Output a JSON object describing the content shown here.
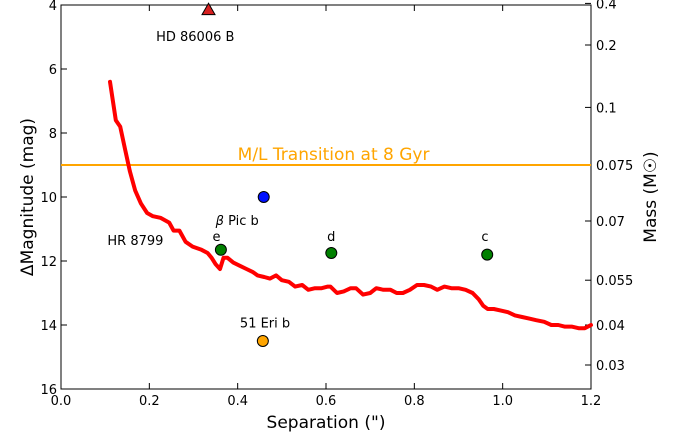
{
  "chart_data": {
    "type": "line",
    "xlabel": "Separation (\")",
    "ylabel": "ΔMagnitude (mag)",
    "ylabel_right": "Mass (M☉)",
    "xlim": [
      0.0,
      1.2
    ],
    "ylim": [
      16,
      4
    ],
    "x_ticks": [
      0.0,
      0.2,
      0.4,
      0.6,
      0.8,
      1.0,
      1.2
    ],
    "x_tick_labels": [
      "0.0",
      "0.2",
      "0.4",
      "0.6",
      "0.8",
      "1.0",
      "1.2"
    ],
    "y_ticks": [
      4,
      6,
      8,
      10,
      12,
      14,
      16
    ],
    "y_tick_labels": [
      "4",
      "6",
      "8",
      "10",
      "12",
      "14",
      "16"
    ],
    "right_axis_ticks": [
      {
        "label": "0.4",
        "dmag": 3.95
      },
      {
        "label": "0.2",
        "dmag": 5.25
      },
      {
        "label": "0.1",
        "dmag": 7.2
      },
      {
        "label": "0.075",
        "dmag": 9.0
      },
      {
        "label": "0.07",
        "dmag": 10.75
      },
      {
        "label": "0.055",
        "dmag": 12.6
      },
      {
        "label": "0.04",
        "dmag": 14.0
      },
      {
        "label": "0.03",
        "dmag": 15.25
      }
    ],
    "grid": false,
    "series": [
      {
        "color": "#ff0000",
        "x": [
          0.111,
          0.124,
          0.134,
          0.145,
          0.156,
          0.168,
          0.181,
          0.195,
          0.208,
          0.225,
          0.245,
          0.255,
          0.268,
          0.282,
          0.298,
          0.318,
          0.332,
          0.341,
          0.35,
          0.36,
          0.368,
          0.377,
          0.39,
          0.405,
          0.42,
          0.435,
          0.445,
          0.46,
          0.473,
          0.487,
          0.5,
          0.516,
          0.53,
          0.546,
          0.56,
          0.575,
          0.59,
          0.604,
          0.61,
          0.625,
          0.64,
          0.656,
          0.668,
          0.684,
          0.7,
          0.714,
          0.73,
          0.746,
          0.76,
          0.774,
          0.79,
          0.806,
          0.822,
          0.838,
          0.852,
          0.868,
          0.884,
          0.9,
          0.916,
          0.932,
          0.946,
          0.956,
          0.966,
          0.98,
          0.996,
          1.012,
          1.028,
          1.044,
          1.06,
          1.076,
          1.094,
          1.11,
          1.126,
          1.14,
          1.156,
          1.172,
          1.186,
          1.2
        ],
        "y": [
          6.4,
          7.6,
          7.8,
          8.5,
          9.2,
          9.8,
          10.2,
          10.5,
          10.6,
          10.65,
          10.8,
          11.05,
          11.05,
          11.4,
          11.55,
          11.65,
          11.75,
          11.9,
          12.1,
          12.25,
          11.9,
          11.9,
          12.05,
          12.15,
          12.25,
          12.35,
          12.45,
          12.5,
          12.55,
          12.45,
          12.6,
          12.65,
          12.8,
          12.75,
          12.9,
          12.85,
          12.85,
          12.8,
          12.8,
          13.0,
          12.95,
          12.85,
          12.85,
          13.05,
          13.0,
          12.85,
          12.9,
          12.9,
          13.0,
          13.0,
          12.9,
          12.75,
          12.75,
          12.8,
          12.9,
          12.8,
          12.85,
          12.85,
          12.9,
          13.0,
          13.2,
          13.4,
          13.5,
          13.5,
          13.55,
          13.6,
          13.7,
          13.75,
          13.8,
          13.85,
          13.9,
          14.0,
          14.0,
          14.05,
          14.05,
          14.1,
          14.1,
          14.0
        ]
      }
    ],
    "transition_line": {
      "label": "M/L Transition at 8 Gyr",
      "y": 9.0,
      "color": "#ffa500"
    },
    "points": [
      {
        "name": "HD 86006 B",
        "x": 0.334,
        "y": 4.15,
        "marker": "triangle",
        "color": "#d62020",
        "label": "HD 86006 B",
        "label_dx": -0.03,
        "label_dy": 0.85
      },
      {
        "name": "beta Pic b",
        "x": 0.459,
        "y": 10.0,
        "marker": "circle",
        "color": "#0010ff",
        "label_prefix": "β",
        "label": " Pic b",
        "label_dx": -0.06,
        "label_dy": 0.75
      },
      {
        "name": "HR 8799 e",
        "x": 0.362,
        "y": 11.65,
        "marker": "circle",
        "color": "#008000",
        "label": "e",
        "label_dx": -0.01,
        "label_dy": -0.4
      },
      {
        "name": "HR 8799 d",
        "x": 0.612,
        "y": 11.75,
        "marker": "circle",
        "color": "#008000",
        "label": "d",
        "label_dx": 0.0,
        "label_dy": -0.5
      },
      {
        "name": "HR 8799 c",
        "x": 0.965,
        "y": 11.8,
        "marker": "circle",
        "color": "#008000",
        "label": "c",
        "label_dx": -0.005,
        "label_dy": -0.55
      },
      {
        "name": "51 Eri b",
        "x": 0.457,
        "y": 14.5,
        "marker": "circle",
        "color": "#ffa500",
        "label": "51 Eri b",
        "label_dx": 0.005,
        "label_dy": -0.55
      }
    ],
    "annotations": [
      {
        "text": "HR 8799",
        "x": 0.105,
        "y": 11.35
      }
    ]
  }
}
